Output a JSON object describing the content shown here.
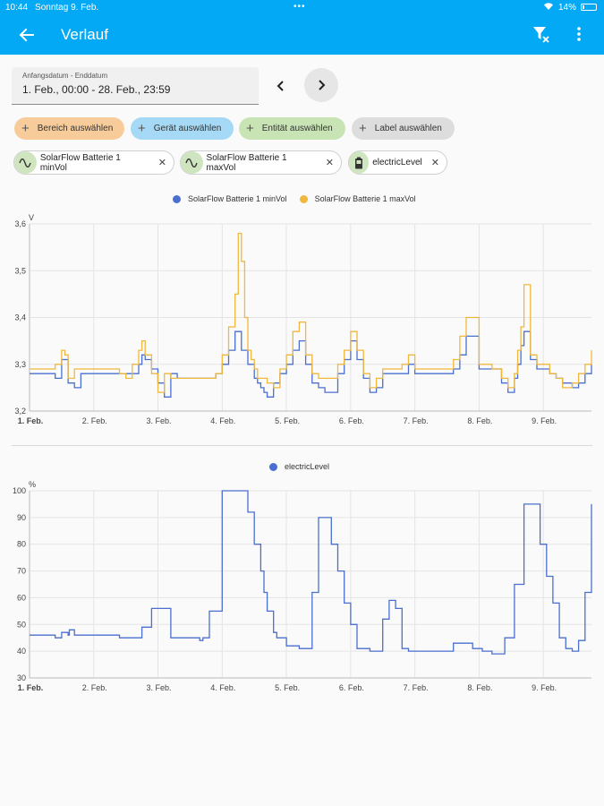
{
  "status": {
    "time": "10:44",
    "date": "Sonntag 9. Feb.",
    "battery": "14%",
    "battery_level": 0.14
  },
  "appbar": {
    "title": "Verlauf",
    "back_icon": "arrow-left-icon",
    "filter_icon": "filter-remove-icon",
    "menu_icon": "dots-vertical-icon"
  },
  "datepicker": {
    "label": "Anfangsdatum - Enddatum",
    "value": "1. Feb., 00:00 - 28. Feb., 23:59"
  },
  "chips": [
    {
      "label": "Bereich auswählen",
      "color": "#f8cc9a"
    },
    {
      "label": "Gerät auswählen",
      "color": "#a5d9f5"
    },
    {
      "label": "Entität auswählen",
      "color": "#c8e3b4"
    },
    {
      "label": "Label auswählen",
      "color": "#dddddd"
    }
  ],
  "entities": [
    {
      "label": "SolarFlow Batterie 1 minVol",
      "icon": "sine-wave-icon"
    },
    {
      "label": "SolarFlow Batterie 1 maxVol",
      "icon": "sine-wave-icon"
    },
    {
      "label": "electricLevel",
      "icon": "battery-icon"
    }
  ],
  "chart_data": [
    {
      "type": "line",
      "ylabel": "V",
      "ylim": [
        3.2,
        3.6
      ],
      "yticks": [
        "3,2",
        "3,3",
        "3,4",
        "3,5",
        "3,6"
      ],
      "xticks": [
        "1. Feb.",
        "2. Feb.",
        "3. Feb.",
        "4. Feb.",
        "5. Feb.",
        "6. Feb.",
        "7. Feb.",
        "8. Feb.",
        "9. Feb."
      ],
      "xlim_days": [
        0,
        8.75
      ],
      "grid": true,
      "legend_position": "top-center",
      "series": [
        {
          "name": "SolarFlow Batterie 1 minVol",
          "color": "#4a6fce",
          "x": [
            0,
            0.1,
            0.2,
            0.3,
            0.4,
            0.5,
            0.6,
            0.7,
            0.8,
            1.0,
            1.3,
            1.5,
            1.7,
            1.75,
            1.8,
            1.9,
            2.0,
            2.1,
            2.2,
            2.3,
            2.5,
            2.7,
            2.9,
            3.0,
            3.1,
            3.2,
            3.3,
            3.4,
            3.5,
            3.55,
            3.6,
            3.65,
            3.7,
            3.8,
            3.9,
            4.0,
            4.1,
            4.2,
            4.3,
            4.4,
            4.5,
            4.6,
            4.7,
            4.8,
            4.9,
            5.0,
            5.1,
            5.2,
            5.3,
            5.4,
            5.5,
            5.6,
            5.7,
            5.8,
            5.9,
            6.0,
            6.2,
            6.4,
            6.5,
            6.55,
            6.6,
            6.7,
            6.8,
            7.0,
            7.2,
            7.35,
            7.45,
            7.55,
            7.6,
            7.65,
            7.7,
            7.8,
            7.9,
            8.0,
            8.1,
            8.2,
            8.3,
            8.45,
            8.55,
            8.65,
            8.75
          ],
          "values": [
            3.28,
            3.28,
            3.28,
            3.28,
            3.27,
            3.31,
            3.26,
            3.25,
            3.28,
            3.28,
            3.28,
            3.28,
            3.3,
            3.32,
            3.31,
            3.29,
            3.26,
            3.23,
            3.28,
            3.27,
            3.27,
            3.27,
            3.28,
            3.3,
            3.33,
            3.37,
            3.33,
            3.3,
            3.27,
            3.26,
            3.25,
            3.24,
            3.23,
            3.26,
            3.28,
            3.3,
            3.33,
            3.35,
            3.3,
            3.26,
            3.25,
            3.24,
            3.24,
            3.28,
            3.31,
            3.35,
            3.31,
            3.27,
            3.24,
            3.25,
            3.28,
            3.28,
            3.28,
            3.28,
            3.3,
            3.28,
            3.28,
            3.28,
            3.28,
            3.28,
            3.29,
            3.32,
            3.36,
            3.29,
            3.29,
            3.26,
            3.24,
            3.27,
            3.3,
            3.34,
            3.37,
            3.31,
            3.29,
            3.29,
            3.28,
            3.27,
            3.26,
            3.25,
            3.26,
            3.28,
            3.3
          ]
        },
        {
          "name": "SolarFlow Batterie 1 maxVol",
          "color": "#f0b83c",
          "x": [
            0,
            0.2,
            0.4,
            0.5,
            0.55,
            0.6,
            0.7,
            0.8,
            1.0,
            1.2,
            1.4,
            1.5,
            1.6,
            1.7,
            1.75,
            1.8,
            1.9,
            2.0,
            2.1,
            2.2,
            2.4,
            2.6,
            2.9,
            3.0,
            3.1,
            3.2,
            3.25,
            3.3,
            3.35,
            3.4,
            3.45,
            3.5,
            3.55,
            3.6,
            3.7,
            3.8,
            3.9,
            4.0,
            4.1,
            4.2,
            4.3,
            4.4,
            4.5,
            4.6,
            4.7,
            4.8,
            4.9,
            5.0,
            5.1,
            5.2,
            5.3,
            5.4,
            5.5,
            5.6,
            5.7,
            5.8,
            5.9,
            6.0,
            6.2,
            6.4,
            6.5,
            6.6,
            6.7,
            6.8,
            7.0,
            7.2,
            7.35,
            7.45,
            7.55,
            7.6,
            7.65,
            7.7,
            7.8,
            7.9,
            8.0,
            8.1,
            8.2,
            8.3,
            8.45,
            8.55,
            8.65,
            8.75
          ],
          "values": [
            3.29,
            3.29,
            3.3,
            3.33,
            3.32,
            3.27,
            3.29,
            3.29,
            3.29,
            3.29,
            3.28,
            3.27,
            3.3,
            3.33,
            3.35,
            3.32,
            3.28,
            3.24,
            3.28,
            3.27,
            3.27,
            3.27,
            3.28,
            3.32,
            3.38,
            3.45,
            3.58,
            3.52,
            3.4,
            3.33,
            3.31,
            3.29,
            3.27,
            3.27,
            3.26,
            3.25,
            3.29,
            3.32,
            3.37,
            3.39,
            3.32,
            3.28,
            3.27,
            3.27,
            3.27,
            3.3,
            3.33,
            3.37,
            3.33,
            3.28,
            3.25,
            3.27,
            3.29,
            3.29,
            3.29,
            3.3,
            3.32,
            3.29,
            3.29,
            3.29,
            3.29,
            3.31,
            3.36,
            3.4,
            3.3,
            3.29,
            3.27,
            3.25,
            3.28,
            3.33,
            3.38,
            3.47,
            3.32,
            3.3,
            3.3,
            3.28,
            3.27,
            3.25,
            3.26,
            3.28,
            3.3,
            3.33
          ]
        }
      ]
    },
    {
      "type": "line",
      "ylabel": "%",
      "ylim": [
        30,
        100
      ],
      "yticks": [
        "30",
        "40",
        "50",
        "60",
        "70",
        "80",
        "90",
        "100"
      ],
      "xticks": [
        "1. Feb.",
        "2. Feb.",
        "3. Feb.",
        "4. Feb.",
        "5. Feb.",
        "6. Feb.",
        "7. Feb.",
        "8. Feb.",
        "9. Feb."
      ],
      "xlim_days": [
        0,
        8.75
      ],
      "grid": true,
      "legend_position": "top-center",
      "series": [
        {
          "name": "electricLevel",
          "color": "#4a6fce",
          "x": [
            0,
            0.2,
            0.4,
            0.42,
            0.5,
            0.6,
            0.62,
            0.7,
            1.0,
            1.1,
            1.3,
            1.4,
            1.5,
            1.6,
            1.65,
            1.75,
            1.9,
            2.2,
            2.4,
            2.5,
            2.6,
            2.65,
            2.7,
            2.8,
            3.0,
            3.2,
            3.4,
            3.5,
            3.6,
            3.65,
            3.7,
            3.8,
            3.85,
            4.0,
            4.2,
            4.3,
            4.4,
            4.5,
            4.6,
            4.7,
            4.8,
            4.9,
            5.0,
            5.1,
            5.3,
            5.5,
            5.6,
            5.7,
            5.8,
            5.9,
            6.1,
            6.3,
            6.5,
            6.6,
            6.7,
            6.9,
            7.05,
            7.15,
            7.2,
            7.3,
            7.4,
            7.55,
            7.7,
            7.85,
            7.95,
            8.05,
            8.15,
            8.25,
            8.35,
            8.45,
            8.55,
            8.65,
            8.75
          ],
          "values": [
            46,
            46,
            45,
            45,
            47,
            46,
            48,
            46,
            46,
            46,
            46,
            45,
            45,
            45,
            45,
            49,
            56,
            45,
            45,
            45,
            45,
            44,
            45,
            55,
            100,
            100,
            92,
            80,
            70,
            62,
            55,
            47,
            45,
            42,
            41,
            41,
            62,
            90,
            90,
            80,
            70,
            58,
            50,
            41,
            40,
            52,
            59,
            56,
            41,
            40,
            40,
            40,
            40,
            43,
            43,
            41,
            40,
            40,
            39,
            39,
            45,
            65,
            95,
            95,
            80,
            68,
            58,
            45,
            41,
            40,
            44,
            62,
            95
          ]
        }
      ]
    }
  ]
}
